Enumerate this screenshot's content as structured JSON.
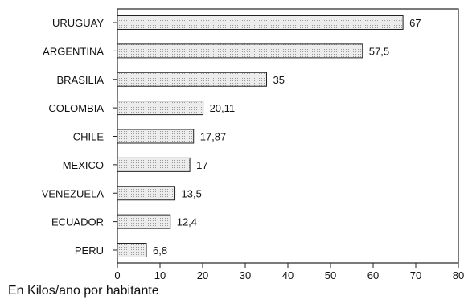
{
  "chart_data": {
    "type": "bar",
    "orientation": "horizontal",
    "categories": [
      "URUGUAY",
      "ARGENTINA",
      "BRASILIA",
      "COLOMBIA",
      "CHILE",
      "MEXICO",
      "VENEZUELA",
      "ECUADOR",
      "PERU"
    ],
    "values": [
      67,
      57.5,
      35,
      20.11,
      17.87,
      17,
      13.5,
      12.4,
      6.8
    ],
    "value_labels": [
      "67",
      "57,5",
      "35",
      "20,11",
      "17,87",
      "17",
      "13,5",
      "12,4",
      "6,8"
    ],
    "xlabel": "En Kilos/ano por habitante",
    "xlim": [
      0,
      80
    ],
    "xticks": [
      0,
      10,
      20,
      30,
      40,
      50,
      60,
      70,
      80
    ],
    "grid": false,
    "bar_color": "#e6e6e6",
    "bar_edge_color": "#222222"
  }
}
